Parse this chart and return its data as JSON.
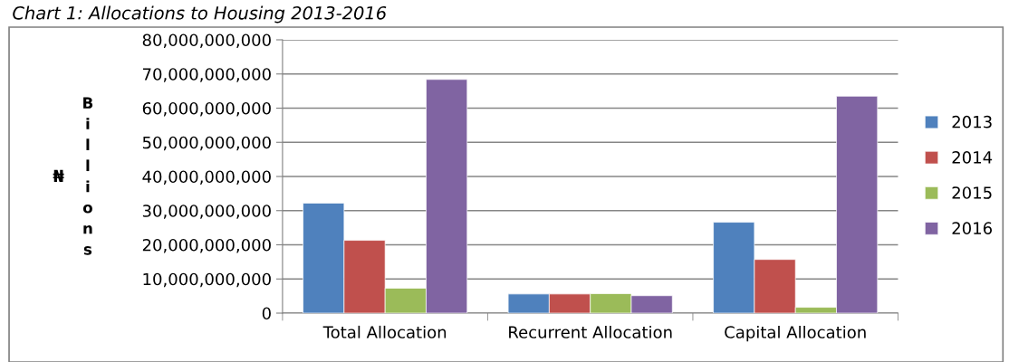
{
  "chart_data": {
    "type": "bar",
    "title": "Chart 1: Allocations to Housing 2013-2016",
    "ylabel": "₦ Billions",
    "categories": [
      "Total Allocation",
      "Recurrent Allocation",
      "Capital Allocation"
    ],
    "series": [
      {
        "name": "2013",
        "color": "#4f81bd",
        "values": [
          32200000000,
          5600000000,
          26600000000
        ]
      },
      {
        "name": "2014",
        "color": "#c0504d",
        "values": [
          21300000000,
          5600000000,
          15700000000
        ]
      },
      {
        "name": "2015",
        "color": "#9bbb59",
        "values": [
          7300000000,
          5700000000,
          1700000000
        ]
      },
      {
        "name": "2016",
        "color": "#8064a2",
        "values": [
          68400000000,
          5100000000,
          63500000000
        ]
      }
    ],
    "ylim": [
      0,
      80000000000
    ],
    "yticks": [
      {
        "value": 0,
        "label": "0"
      },
      {
        "value": 10000000000,
        "label": "10,000,000,000"
      },
      {
        "value": 20000000000,
        "label": "20,000,000,000"
      },
      {
        "value": 30000000000,
        "label": "30,000,000,000"
      },
      {
        "value": 40000000000,
        "label": "40,000,000,000"
      },
      {
        "value": 50000000000,
        "label": "50,000,000,000"
      },
      {
        "value": 60000000000,
        "label": "60,000,000,000"
      },
      {
        "value": 70000000000,
        "label": "70,000,000,000"
      },
      {
        "value": 80000000000,
        "label": "80,000,000,000"
      }
    ],
    "grid": "y",
    "legend": "right"
  }
}
